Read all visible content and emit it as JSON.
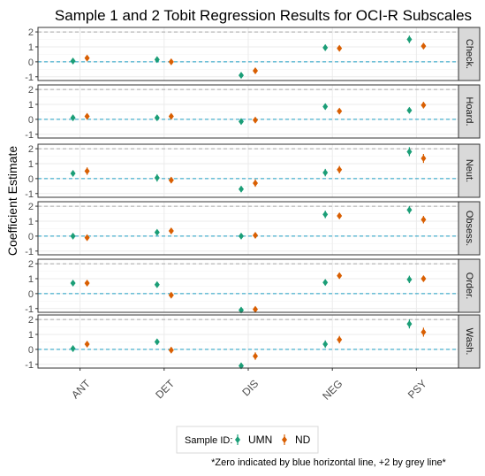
{
  "chart_data": {
    "type": "scatter",
    "title": "Sample 1 and 2 Tobit Regression Results for OCI-R Subscales",
    "ylabel": "Coefficient Estimate",
    "categories": [
      "ANT",
      "DET",
      "DIS",
      "NEG",
      "PSY"
    ],
    "ylim": [
      -1.25,
      2.3
    ],
    "yticks": [
      -1,
      0,
      1,
      2
    ],
    "reference_lines": [
      {
        "y": 0,
        "color": "#1f9fc4",
        "label": "zero"
      },
      {
        "y": 2,
        "color": "#a6a6a6",
        "label": "+2"
      }
    ],
    "legend": {
      "title": "Sample ID:",
      "position": "bottom"
    },
    "footnote": "*Zero indicated by blue horizontal line, +2 by grey line*",
    "series_meta": [
      {
        "name": "UMN",
        "color": "#1b9e77"
      },
      {
        "name": "ND",
        "color": "#d95f02"
      }
    ],
    "panels": [
      {
        "label": "Check.",
        "series": [
          {
            "name": "UMN",
            "values": [
              0.05,
              0.15,
              -0.9,
              0.95,
              1.5
            ],
            "err": [
              0.15,
              0.15,
              0.15,
              0.2,
              0.25
            ]
          },
          {
            "name": "ND",
            "values": [
              0.25,
              0.0,
              -0.6,
              0.9,
              1.05
            ],
            "err": [
              0.15,
              0.12,
              0.18,
              0.15,
              0.2
            ]
          }
        ]
      },
      {
        "label": "Hoard.",
        "series": [
          {
            "name": "UMN",
            "values": [
              0.1,
              0.1,
              -0.15,
              0.85,
              0.6
            ],
            "err": [
              0.15,
              0.15,
              0.15,
              0.2,
              0.2
            ]
          },
          {
            "name": "ND",
            "values": [
              0.2,
              0.2,
              -0.05,
              0.55,
              0.95
            ],
            "err": [
              0.15,
              0.15,
              0.12,
              0.18,
              0.22
            ]
          }
        ]
      },
      {
        "label": "Neut.",
        "series": [
          {
            "name": "UMN",
            "values": [
              0.35,
              0.05,
              -0.7,
              0.4,
              1.8
            ],
            "err": [
              0.2,
              0.25,
              0.2,
              0.25,
              0.3
            ]
          },
          {
            "name": "ND",
            "values": [
              0.5,
              -0.1,
              -0.3,
              0.6,
              1.35
            ],
            "err": [
              0.25,
              0.2,
              0.25,
              0.25,
              0.3
            ]
          }
        ]
      },
      {
        "label": "Obsess.",
        "series": [
          {
            "name": "UMN",
            "values": [
              0.0,
              0.25,
              0.0,
              1.45,
              1.75
            ],
            "err": [
              0.15,
              0.15,
              0.15,
              0.25,
              0.25
            ]
          },
          {
            "name": "ND",
            "values": [
              -0.1,
              0.35,
              0.05,
              1.35,
              1.1
            ],
            "err": [
              0.15,
              0.15,
              0.15,
              0.2,
              0.25
            ]
          }
        ]
      },
      {
        "label": "Order.",
        "series": [
          {
            "name": "UMN",
            "values": [
              0.7,
              0.6,
              -1.1,
              0.75,
              0.95
            ],
            "err": [
              0.15,
              0.15,
              0.15,
              0.2,
              0.25
            ]
          },
          {
            "name": "ND",
            "values": [
              0.7,
              -0.1,
              -1.05,
              1.2,
              1.0
            ],
            "err": [
              0.15,
              0.15,
              0.15,
              0.2,
              0.2
            ]
          }
        ]
      },
      {
        "label": "Wash.",
        "series": [
          {
            "name": "UMN",
            "values": [
              0.05,
              0.5,
              -1.1,
              0.35,
              1.7
            ],
            "err": [
              0.2,
              0.2,
              0.2,
              0.25,
              0.3
            ]
          },
          {
            "name": "ND",
            "values": [
              0.35,
              -0.05,
              -0.45,
              0.65,
              1.15
            ],
            "err": [
              0.2,
              0.2,
              0.25,
              0.25,
              0.3
            ]
          }
        ]
      }
    ]
  }
}
